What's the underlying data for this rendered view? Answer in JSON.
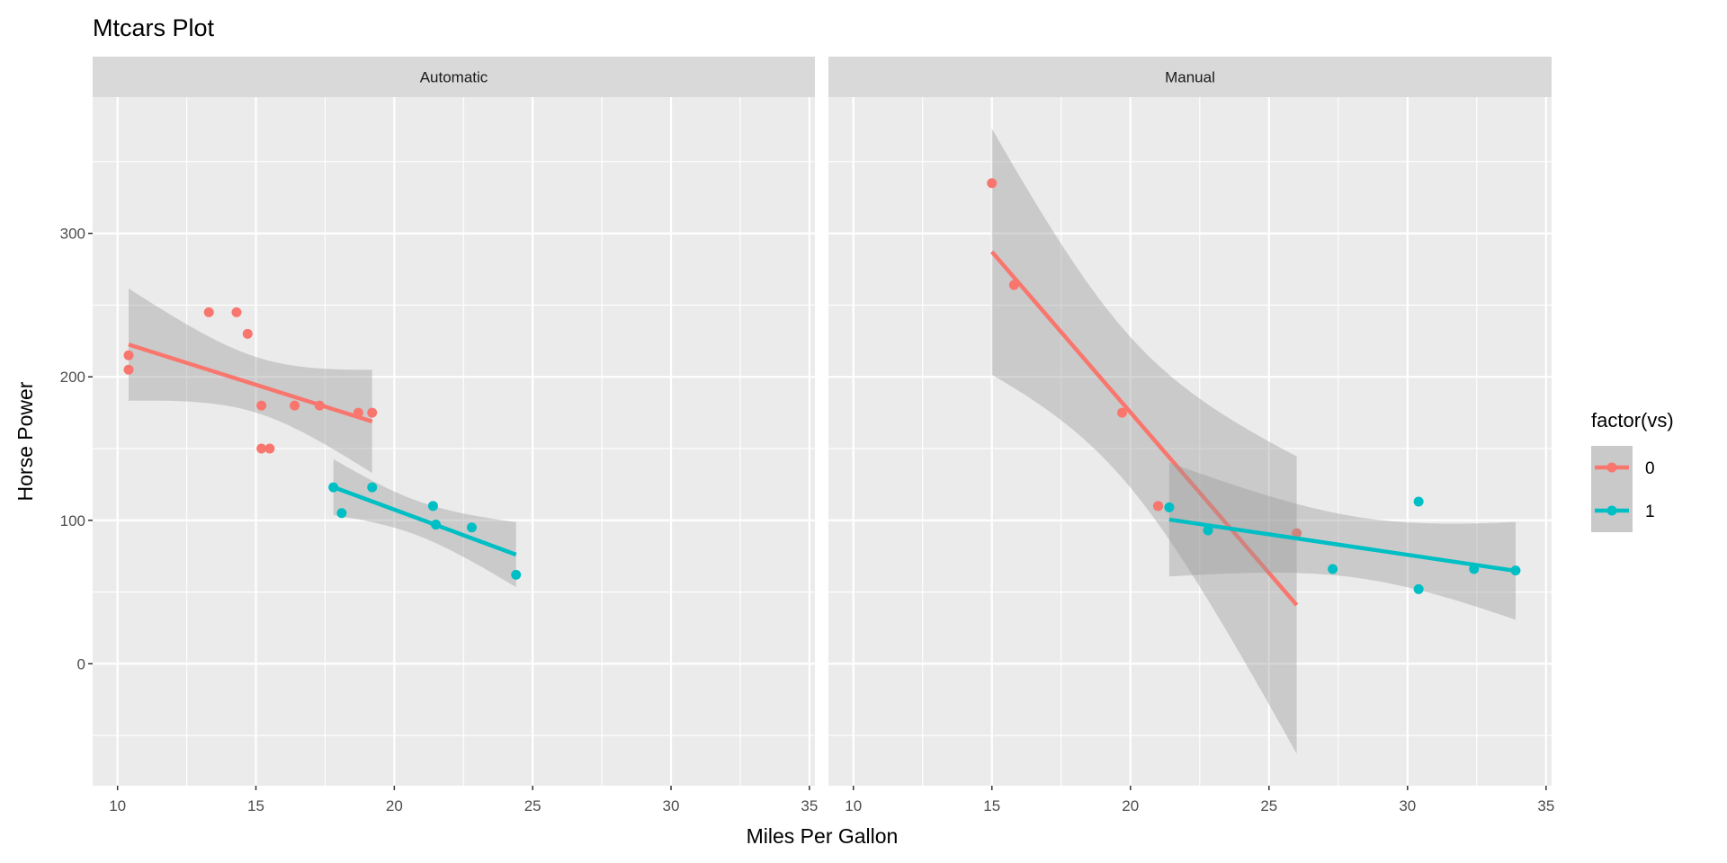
{
  "chart_data": {
    "type": "scatter",
    "title": "Mtcars Plot",
    "xlabel": "Miles Per Gallon",
    "ylabel": "Horse Power",
    "xlim": [
      9.1,
      35.2
    ],
    "ylim": [
      -85,
      395
    ],
    "x_ticks": [
      10,
      15,
      20,
      25,
      30,
      35
    ],
    "y_ticks": [
      0,
      100,
      200,
      300
    ],
    "grid": true,
    "smooth": {
      "method": "lm",
      "level": 0.95
    },
    "legend": {
      "title": "factor(vs)",
      "placement": "right",
      "entries": [
        {
          "label": "0",
          "color": "#F8766D"
        },
        {
          "label": "1",
          "color": "#00BFC4"
        }
      ]
    },
    "facets": [
      {
        "label": "Automatic",
        "series": [
          {
            "name": "0",
            "color": "#F8766D",
            "x": [
              18.7,
              14.3,
              16.4,
              17.3,
              15.2,
              10.4,
              10.4,
              14.7,
              15.5,
              15.2,
              13.3,
              19.2
            ],
            "y": [
              175,
              245,
              180,
              180,
              180,
              205,
              215,
              230,
              150,
              150,
              245,
              175
            ]
          },
          {
            "name": "1",
            "color": "#00BFC4",
            "x": [
              21.4,
              18.1,
              24.4,
              22.8,
              19.2,
              17.8,
              21.5
            ],
            "y": [
              110,
              105,
              62,
              95,
              123,
              123,
              97
            ]
          }
        ]
      },
      {
        "label": "Manual",
        "series": [
          {
            "name": "0",
            "color": "#F8766D",
            "x": [
              21.0,
              21.0,
              26.0,
              15.8,
              19.7,
              15.0
            ],
            "y": [
              110,
              110,
              91,
              264,
              175,
              335
            ]
          },
          {
            "name": "1",
            "color": "#00BFC4",
            "x": [
              22.8,
              32.4,
              30.4,
              33.9,
              27.3,
              30.4,
              21.4
            ],
            "y": [
              93,
              66,
              52,
              65,
              66,
              113,
              109
            ]
          }
        ]
      }
    ]
  }
}
